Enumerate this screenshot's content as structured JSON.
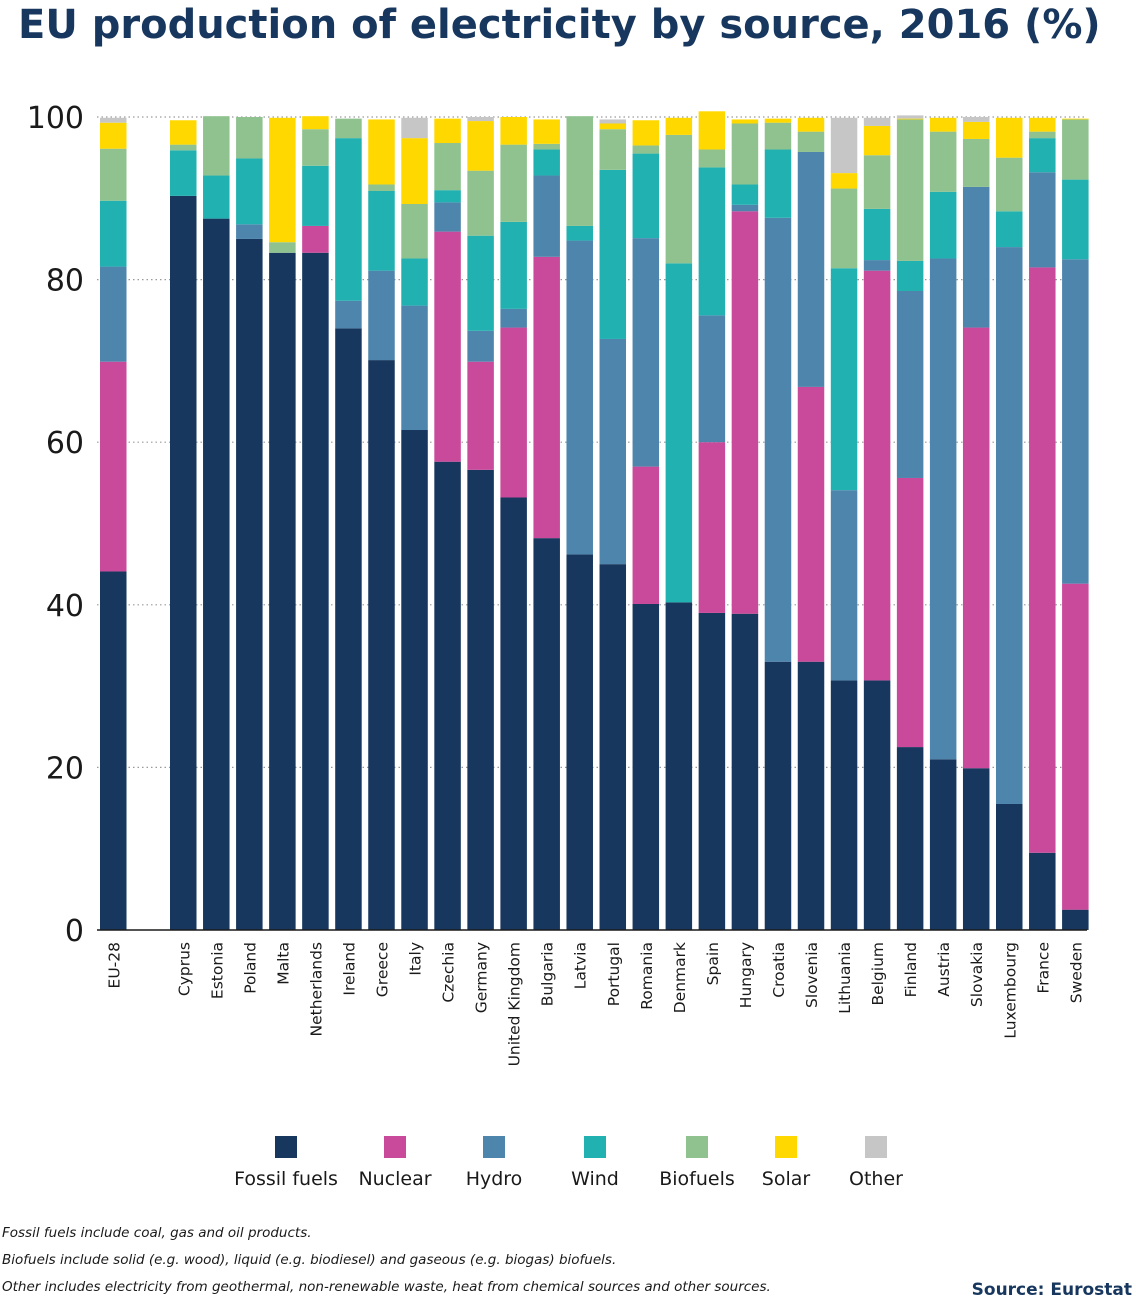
{
  "title": "EU production of electricity by source, 2016 (%)",
  "chart_data": {
    "type": "bar",
    "stacked": true,
    "title": "EU production of electricity by source, 2016 (%)",
    "ylim": [
      0,
      100
    ],
    "yticks": [
      0,
      20,
      40,
      60,
      80,
      100
    ],
    "grid": "dotted-horizontal",
    "categories": [
      "EU-28",
      "Cyprus",
      "Estonia",
      "Poland",
      "Malta",
      "Netherlands",
      "Ireland",
      "Greece",
      "Italy",
      "Czechia",
      "Germany",
      "United Kingdom",
      "Bulgaria",
      "Latvia",
      "Portugal",
      "Romania",
      "Denmark",
      "Spain",
      "Hungary",
      "Croatia",
      "Slovenia",
      "Lithuania",
      "Belgium",
      "Finland",
      "Austria",
      "Slovakia",
      "Luxembourg",
      "France",
      "Sweden"
    ],
    "series": [
      {
        "name": "Fossil fuels",
        "color": "#17375e",
        "values": [
          44.1,
          90.3,
          87.5,
          85.0,
          83.3,
          83.3,
          74.0,
          70.1,
          61.5,
          57.6,
          56.6,
          53.2,
          48.2,
          46.2,
          45.0,
          40.1,
          40.3,
          39.0,
          38.9,
          33.0,
          33.0,
          30.7,
          30.7,
          22.5,
          21.0,
          19.9,
          15.5,
          9.5,
          2.5
        ]
      },
      {
        "name": "Nuclear",
        "color": "#c9499a",
        "values": [
          25.8,
          0,
          0,
          0,
          0,
          3.3,
          0,
          0,
          0,
          28.3,
          13.3,
          20.9,
          34.6,
          0,
          0,
          16.9,
          0,
          21.0,
          49.5,
          0,
          33.8,
          0,
          50.4,
          33.1,
          0,
          54.2,
          0,
          72.0,
          40.1
        ]
      },
      {
        "name": "Hydro",
        "color": "#4e85ad",
        "values": [
          11.7,
          0,
          0,
          1.8,
          0,
          0,
          3.4,
          11.0,
          15.3,
          3.6,
          3.8,
          2.3,
          10.0,
          38.6,
          27.7,
          28.1,
          0,
          15.6,
          0.8,
          54.6,
          28.9,
          23.4,
          1.3,
          23.0,
          61.6,
          17.3,
          68.5,
          11.7,
          39.9
        ]
      },
      {
        "name": "Wind",
        "color": "#21b1b0",
        "values": [
          8.1,
          5.6,
          5.3,
          8.1,
          0,
          7.4,
          20.0,
          9.8,
          5.8,
          1.5,
          11.7,
          10.7,
          3.2,
          1.8,
          20.8,
          10.4,
          41.7,
          18.2,
          2.5,
          8.4,
          0,
          27.3,
          6.3,
          3.7,
          8.2,
          0,
          4.4,
          4.2,
          9.8
        ]
      },
      {
        "name": "Biofuels",
        "color": "#8fc28f",
        "values": [
          6.4,
          0.7,
          7.3,
          5.1,
          1.3,
          4.5,
          2.4,
          0.8,
          6.7,
          5.8,
          8.0,
          9.5,
          0.7,
          13.5,
          5.0,
          1.0,
          15.8,
          2.2,
          7.5,
          3.3,
          2.5,
          9.8,
          6.6,
          17.4,
          7.4,
          5.9,
          6.6,
          0.8,
          7.4
        ]
      },
      {
        "name": "Solar",
        "color": "#ffd800",
        "values": [
          3.2,
          3.0,
          0,
          0,
          15.3,
          1.6,
          0,
          8.0,
          8.1,
          3.0,
          6.1,
          3.4,
          3.0,
          0,
          0.7,
          3.1,
          2.1,
          4.7,
          0.5,
          0.5,
          1.7,
          1.9,
          3.6,
          0.1,
          1.7,
          2.1,
          4.9,
          1.7,
          0.1
        ]
      },
      {
        "name": "Other",
        "color": "#c6c6c6",
        "values": [
          0.6,
          0,
          0,
          0,
          0,
          0,
          0,
          0,
          2.5,
          0,
          0.5,
          0,
          0,
          0,
          0.5,
          0,
          0,
          0,
          0,
          0,
          0,
          6.8,
          1.0,
          0.4,
          0,
          0.6,
          0,
          0,
          0
        ]
      }
    ],
    "legend": "bottom"
  },
  "legend": [
    {
      "label": "Fossil fuels",
      "color": "#17375e"
    },
    {
      "label": "Nuclear",
      "color": "#c9499a"
    },
    {
      "label": "Hydro",
      "color": "#4e85ad"
    },
    {
      "label": "Wind",
      "color": "#21b1b0"
    },
    {
      "label": "Biofuels",
      "color": "#8fc28f"
    },
    {
      "label": "Solar",
      "color": "#ffd800"
    },
    {
      "label": "Other",
      "color": "#c6c6c6"
    }
  ],
  "notes": {
    "fossil": "Fossil fuels include coal, gas and oil products.",
    "biofuels": "Biofuels include solid (e.g. wood), liquid (e.g. biodiesel) and gaseous (e.g. biogas) biofuels.",
    "other": "Other includes electricity from geothermal, non-renewable waste, heat from chemical sources and other sources."
  },
  "source": "Source: Eurostat"
}
